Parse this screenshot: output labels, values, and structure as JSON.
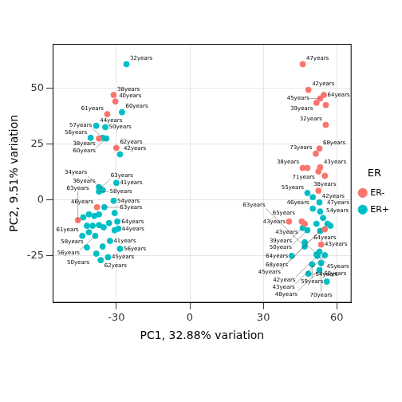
{
  "chart_data": {
    "type": "scatter",
    "x_label": "PC1, 32.88% variation",
    "y_label": "PC2, 9.51% variation",
    "legend_title": "ER",
    "legend": "right",
    "grid": true,
    "xlim": [
      -56,
      66
    ],
    "ylim": [
      -46,
      70
    ],
    "xticks": [
      -30,
      0,
      30,
      60
    ],
    "yticks": [
      -25,
      0,
      25,
      50
    ],
    "series": [
      {
        "name": "ER-",
        "color": "#F8766D",
        "x": [
          -31.1,
          -30.4,
          -33.7,
          -37.1,
          -30.0,
          -37.9,
          -45.7,
          46.1,
          48.4,
          54.7,
          53.2,
          51.7,
          55.5,
          55.5,
          52.9,
          51.4,
          53.2,
          46.1,
          48.0,
          52.5,
          55.1,
          52.5,
          45.7,
          40.5,
          46.9,
          55.1,
          53.6
        ],
        "values": [
          47.1,
          44.2,
          38.5,
          27.6,
          23.4,
          -3.2,
          -9.0,
          60.9,
          49.4,
          47.1,
          45.5,
          43.6,
          42.6,
          33.7,
          23.1,
          20.8,
          14.7,
          14.4,
          14.4,
          12.8,
          10.9,
          4.2,
          -9.6,
          -9.6,
          -10.6,
          -13.1,
          -19.9
        ],
        "labels": [
          "38years",
          "40years",
          "61years",
          "38years",
          "62years",
          "46years",
          "63years",
          "47years",
          "42years",
          "64years",
          "45years",
          "39years",
          null,
          "32years",
          "68years",
          "73years",
          "43years",
          "38years",
          null,
          "71years",
          "38years",
          "42years",
          "65years",
          "43years",
          "43years",
          "64years",
          "43years"
        ]
      },
      {
        "name": "ER+",
        "color": "#00BFC4",
        "x": [
          -25.9,
          -27.7,
          -38.2,
          -34.5,
          -40.5,
          -35.6,
          -34.1,
          -28.5,
          -37.1,
          -36.7,
          -30.0,
          -37.1,
          -35.6,
          -31.1,
          -34.9,
          -30.7,
          -43.5,
          -41.2,
          -39.0,
          -37.1,
          -33.0,
          -29.6,
          -42.0,
          -39.7,
          -37.1,
          -35.2,
          -30.7,
          -41.2,
          -29.2,
          -43.9,
          -38.6,
          -32.6,
          -42.0,
          -28.5,
          -38.2,
          -33.4,
          -36.4,
          -35.6,
          48.0,
          50.2,
          52.9,
          50.2,
          53.2,
          54.4,
          51.7,
          56.2,
          57.4,
          46.1,
          48.0,
          53.2,
          46.9,
          46.9,
          52.9,
          51.7,
          52.1,
          41.6,
          55.1,
          53.6,
          49.9,
          48.4,
          52.9,
          55.9
        ],
        "values": [
          60.9,
          39.4,
          33.3,
          32.7,
          27.9,
          27.9,
          27.6,
          20.5,
          5.8,
          5.1,
          7.7,
          3.8,
          4.5,
          -0.3,
          -3.2,
          -5.8,
          -7.7,
          -6.4,
          -7.1,
          -6.4,
          -10.3,
          -9.6,
          -11.5,
          -11.5,
          -11.2,
          -12.2,
          -13.5,
          -14.4,
          -12.8,
          -16.0,
          -16.0,
          -18.3,
          -21.2,
          -21.8,
          -24.0,
          -25.6,
          -26.9,
          -20.8,
          3.2,
          1.3,
          -1.0,
          -3.8,
          -5.1,
          -8.0,
          -10.6,
          -10.6,
          -11.5,
          -12.5,
          -13.5,
          -13.8,
          -18.9,
          -20.8,
          -23.1,
          -24.4,
          -25.0,
          -25.0,
          -24.7,
          -28.2,
          -28.8,
          -33.0,
          -31.4,
          -36.5
        ],
        "labels": [
          "32years",
          "60years",
          "44years",
          "50years",
          "56years",
          "57years",
          "60years",
          "42years",
          "36years",
          "63years",
          "41years",
          "58years",
          "34years",
          "54years",
          "63years",
          "64years",
          null,
          null,
          null,
          null,
          null,
          null,
          null,
          null,
          null,
          null,
          null,
          null,
          "44years",
          "61years",
          "56years",
          "41years",
          "58years",
          "56years",
          "50years",
          "45years",
          "62years",
          null,
          "55years",
          null,
          "54years",
          "46years",
          "47years",
          null,
          null,
          "68years",
          null,
          "39years",
          "50years",
          "45years",
          "45years",
          "63years",
          null,
          null,
          "42years",
          "64years",
          "43years",
          "70years",
          "59years",
          "60years",
          "48years",
          "54years"
        ]
      }
    ]
  }
}
